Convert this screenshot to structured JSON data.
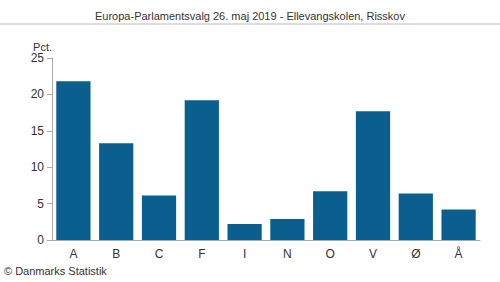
{
  "chart_data": {
    "type": "bar",
    "title": "Europa-Parlamentsvalg 26. maj 2019 - Ellevangskolen, Risskov",
    "y_label": "Pct.",
    "annotation": "© Danmarks Statistik",
    "categories": [
      "A",
      "B",
      "C",
      "F",
      "I",
      "N",
      "O",
      "V",
      "Ø",
      "Å"
    ],
    "values": [
      21.8,
      13.3,
      6.1,
      19.2,
      2.2,
      2.9,
      6.7,
      17.7,
      6.4,
      4.2
    ],
    "color": "#0b5f8f",
    "ylim": [
      0,
      25
    ],
    "yticks": [
      0,
      5,
      10,
      15,
      20,
      25
    ],
    "grid": false
  }
}
